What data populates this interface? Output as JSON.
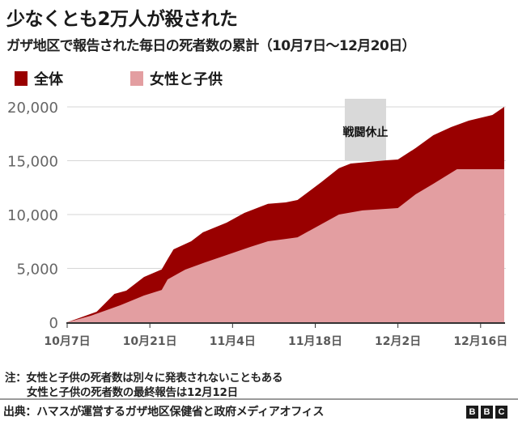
{
  "header": {
    "title": "少なくとも2万人が殺された",
    "subtitle": "ガザ地区で報告された毎日の死者数の累計（10月7日〜12月20日）"
  },
  "legend": [
    {
      "label": "全体",
      "color": "#990000"
    },
    {
      "label": "女性と子供",
      "color": "#e39ea1"
    }
  ],
  "notes": {
    "line1": "注：女性と子供の死者数は別々に発表されないこともある",
    "line2": "女性と子供の死者数の最終報告は12月12日"
  },
  "footer": {
    "source": "出典：ハマスが運営するガザ地区保健省と政府メディアオフィス",
    "logo": [
      "B",
      "B",
      "C"
    ]
  },
  "colors": {
    "total": "#990000",
    "women_children": "#e39ea1",
    "ceasefire": "#d9d9d9",
    "gridline": "#d6d6d6",
    "axis": "#333333",
    "tick_label": "#5a5a5a"
  },
  "chart_data": {
    "type": "area",
    "title": "少なくとも2万人が殺された",
    "subtitle": "ガザ地区で報告された毎日の死者数の累計（10月7日〜12月20日）",
    "xlabel": "",
    "ylabel": "",
    "x_unit": "days since 10月7日",
    "xlim": [
      0,
      74
    ],
    "ylim": [
      0,
      20000
    ],
    "yticks": [
      0,
      5000,
      10000,
      15000,
      20000
    ],
    "ytick_labels": [
      "0",
      "5,000",
      "10,000",
      "15,000",
      "20,000"
    ],
    "xticks": [
      0,
      14,
      28,
      42,
      56,
      70
    ],
    "xtick_labels": [
      "10月7日",
      "10月21日",
      "11月4日",
      "11月18日",
      "12月2日",
      "12月16日"
    ],
    "grid": true,
    "legend_position": "top-left",
    "annotations": [
      {
        "label": "戦闘休止",
        "type": "shaded-band",
        "x_start": 47,
        "x_end": 54
      }
    ],
    "series": [
      {
        "name": "全体",
        "x": [
          0,
          2,
          5,
          8,
          10,
          13,
          16,
          17,
          18,
          21,
          23,
          27,
          30,
          34,
          37,
          39,
          43,
          46,
          48,
          54,
          56,
          59,
          62,
          65,
          68,
          72,
          74
        ],
        "values": [
          0,
          380,
          980,
          2630,
          2930,
          4200,
          4900,
          5860,
          6770,
          7520,
          8350,
          9250,
          10150,
          11000,
          11130,
          11350,
          13000,
          14300,
          14740,
          15040,
          15110,
          16170,
          17370,
          18120,
          18720,
          19250,
          20000
        ]
      },
      {
        "name": "女性と子供",
        "x": [
          0,
          4,
          9,
          13,
          16,
          17,
          19,
          20,
          23,
          27,
          31,
          34,
          37,
          39,
          46,
          50,
          56,
          59,
          62,
          66,
          74
        ],
        "values": [
          0,
          600,
          1580,
          2480,
          3000,
          3980,
          4590,
          4890,
          5490,
          6240,
          6990,
          7520,
          7740,
          7890,
          10000,
          10380,
          10600,
          11880,
          12860,
          14210,
          14210
        ]
      }
    ]
  }
}
